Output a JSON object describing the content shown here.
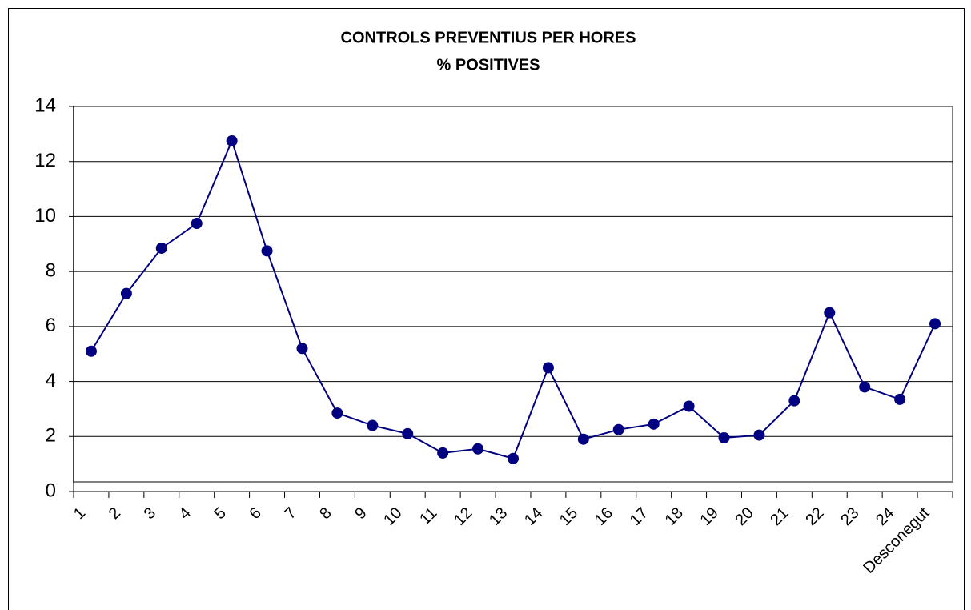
{
  "chart_data": {
    "type": "line",
    "title": "CONTROLS PREVENTIUS PER HORES",
    "subtitle": "% POSITIVES",
    "categories": [
      "1",
      "2",
      "3",
      "4",
      "5",
      "6",
      "7",
      "8",
      "9",
      "10",
      "11",
      "12",
      "13",
      "14",
      "15",
      "16",
      "17",
      "18",
      "19",
      "20",
      "21",
      "22",
      "23",
      "24",
      "Desconegut"
    ],
    "series": [
      {
        "name": "% positives",
        "color": "#000080",
        "values": [
          5.1,
          7.2,
          8.85,
          9.75,
          12.75,
          8.75,
          5.2,
          2.85,
          2.4,
          2.1,
          1.4,
          1.55,
          1.2,
          4.5,
          1.9,
          2.25,
          2.45,
          3.1,
          1.95,
          2.05,
          3.3,
          6.5,
          3.8,
          3.35,
          6.1
        ]
      }
    ],
    "ylim": [
      0,
      14
    ],
    "yticks": [
      0,
      2,
      4,
      6,
      8,
      10,
      12,
      14
    ],
    "grid": true
  }
}
